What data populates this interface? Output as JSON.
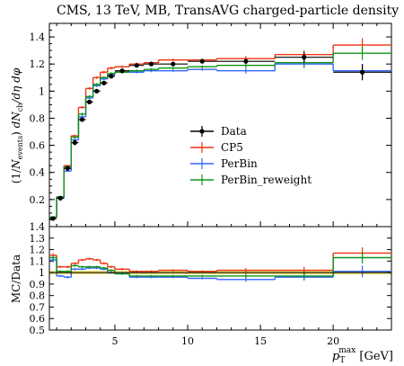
{
  "title": "CMS, 13 TeV, MB, TransAVG charged-particle density",
  "chart_data": [
    {
      "type": "line",
      "panel": "main",
      "ylabel_parts": {
        "open": "(1/",
        "n_sym": "N",
        "n_sub": "events",
        "mid": ") ",
        "d": "d",
        "nch_n": "N",
        "nch_sub": "ch",
        "tail": "/dη dφ"
      },
      "xlim": [
        0.5,
        24
      ],
      "ylim": [
        0,
        1.5
      ],
      "yticks": [
        "0.2",
        "0.4",
        "0.6",
        "0.8",
        "1",
        "1.2",
        "1.4"
      ],
      "ytick_values": [
        0.2,
        0.4,
        0.6,
        0.8,
        1.0,
        1.2,
        1.4
      ],
      "bins": [
        [
          0.5,
          1
        ],
        [
          1,
          1.5
        ],
        [
          1.5,
          2
        ],
        [
          2,
          2.5
        ],
        [
          2.5,
          3
        ],
        [
          3,
          3.5
        ],
        [
          3.5,
          4
        ],
        [
          4,
          4.5
        ],
        [
          4.5,
          5
        ],
        [
          5,
          6
        ],
        [
          6,
          7
        ],
        [
          7,
          8
        ],
        [
          8,
          10
        ],
        [
          10,
          12
        ],
        [
          12,
          16
        ],
        [
          16,
          20
        ],
        [
          20,
          24
        ]
      ],
      "series": [
        {
          "name": "Data",
          "color": "#000000",
          "marker": "dot",
          "values": [
            0.06,
            0.21,
            0.43,
            0.62,
            0.79,
            0.92,
            1.0,
            1.06,
            1.11,
            1.15,
            1.19,
            1.2,
            1.2,
            1.22,
            1.22,
            1.25,
            1.14
          ],
          "errors": [
            0.01,
            0.01,
            0.02,
            0.02,
            0.01,
            0.01,
            0.01,
            0.01,
            0.01,
            0.01,
            0.01,
            0.01,
            0.01,
            0.01,
            0.02,
            0.04,
            0.06
          ]
        },
        {
          "name": "CP5",
          "color": "#ee3311",
          "values": [
            0.07,
            0.22,
            0.45,
            0.67,
            0.88,
            1.02,
            1.1,
            1.14,
            1.17,
            1.18,
            1.2,
            1.21,
            1.23,
            1.23,
            1.24,
            1.27,
            1.34
          ],
          "errors": [
            0.0,
            0.0,
            0.0,
            0.01,
            0.01,
            0.01,
            0.01,
            0.01,
            0.01,
            0.01,
            0.01,
            0.01,
            0.01,
            0.01,
            0.02,
            0.03,
            0.05
          ]
        },
        {
          "name": "PerBin",
          "color": "#3366ff",
          "values": [
            0.07,
            0.21,
            0.41,
            0.64,
            0.81,
            0.95,
            1.04,
            1.09,
            1.12,
            1.14,
            1.14,
            1.15,
            1.15,
            1.16,
            1.15,
            1.2,
            1.15
          ],
          "errors": [
            0.0,
            0.0,
            0.0,
            0.01,
            0.01,
            0.01,
            0.01,
            0.01,
            0.01,
            0.01,
            0.01,
            0.01,
            0.01,
            0.01,
            0.02,
            0.03,
            0.05
          ]
        },
        {
          "name": "PerBin_reweight",
          "color": "#109618",
          "values": [
            0.07,
            0.22,
            0.44,
            0.66,
            0.83,
            0.96,
            1.05,
            1.1,
            1.13,
            1.14,
            1.15,
            1.16,
            1.17,
            1.18,
            1.19,
            1.21,
            1.28
          ],
          "errors": [
            0.0,
            0.0,
            0.0,
            0.01,
            0.01,
            0.01,
            0.01,
            0.01,
            0.01,
            0.01,
            0.01,
            0.01,
            0.01,
            0.01,
            0.02,
            0.03,
            0.05
          ]
        }
      ],
      "legend": {
        "placement": "right",
        "entries": [
          "Data",
          "CP5",
          "PerBin",
          "PerBin_reweight"
        ]
      }
    },
    {
      "type": "line",
      "panel": "ratio",
      "ylabel": "MC/Data",
      "xlim": [
        0.5,
        24
      ],
      "ylim": [
        0.5,
        1.4
      ],
      "yticks": [
        "0.5",
        "0.6",
        "0.7",
        "0.8",
        "0.9",
        "1",
        "1.1",
        "1.2",
        "1.3",
        "1.4"
      ],
      "ytick_values": [
        0.5,
        0.6,
        0.7,
        0.8,
        0.9,
        1.0,
        1.1,
        1.2,
        1.3,
        1.4
      ],
      "xticks": [
        "5",
        "10",
        "15",
        "20"
      ],
      "xtick_values": [
        5,
        10,
        15,
        20
      ],
      "xlabel_parts": {
        "p": "p",
        "sub": "T",
        "sup": "max",
        "unit": " [GeV]"
      },
      "band_color": "#e8d44d",
      "series": [
        {
          "name": "CP5",
          "color": "#ee3311",
          "values": [
            1.15,
            1.05,
            1.05,
            1.08,
            1.11,
            1.12,
            1.11,
            1.08,
            1.05,
            1.03,
            1.01,
            1.01,
            1.02,
            1.01,
            1.02,
            1.02,
            1.17
          ],
          "errors": [
            0.02,
            0.01,
            0.01,
            0.01,
            0.01,
            0.01,
            0.01,
            0.01,
            0.01,
            0.01,
            0.01,
            0.01,
            0.01,
            0.01,
            0.02,
            0.03,
            0.05
          ]
        },
        {
          "name": "PerBin",
          "color": "#3366ff",
          "values": [
            1.11,
            0.97,
            0.96,
            1.03,
            1.03,
            1.04,
            1.04,
            1.03,
            1.0,
            0.99,
            0.96,
            0.96,
            0.96,
            0.95,
            0.94,
            0.96,
            1.01
          ],
          "errors": [
            0.02,
            0.01,
            0.01,
            0.01,
            0.01,
            0.01,
            0.01,
            0.01,
            0.01,
            0.01,
            0.01,
            0.01,
            0.01,
            0.01,
            0.02,
            0.03,
            0.05
          ]
        },
        {
          "name": "PerBin_reweight",
          "color": "#109618",
          "values": [
            1.13,
            1.01,
            1.01,
            1.06,
            1.05,
            1.05,
            1.05,
            1.04,
            1.02,
            0.99,
            0.97,
            0.97,
            0.97,
            0.97,
            0.97,
            0.97,
            1.13
          ],
          "errors": [
            0.02,
            0.01,
            0.01,
            0.01,
            0.01,
            0.01,
            0.01,
            0.01,
            0.01,
            0.01,
            0.01,
            0.01,
            0.01,
            0.01,
            0.02,
            0.03,
            0.05
          ]
        }
      ]
    }
  ]
}
